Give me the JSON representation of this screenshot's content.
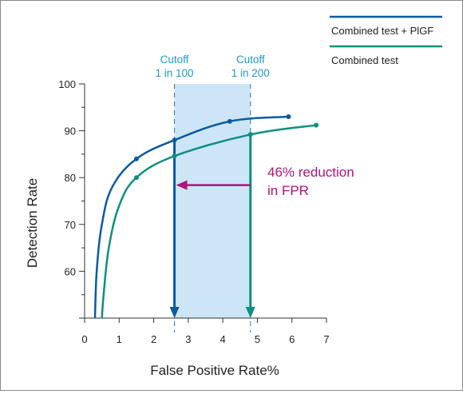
{
  "chart_data": {
    "type": "line",
    "xlabel": "False Positive Rate%",
    "ylabel": "Detection Rate",
    "xlim": [
      0,
      7
    ],
    "ylim": [
      50,
      100
    ],
    "x_ticks": [
      "0",
      "1",
      "2",
      "3",
      "4",
      "5",
      "6",
      "7"
    ],
    "y_ticks": [
      "60",
      "70",
      "80",
      "90",
      "100"
    ],
    "series": [
      {
        "name": "Combined test + PlGF",
        "color": "#0a5aa4",
        "points": [
          [
            0.3,
            50
          ],
          [
            0.35,
            60
          ],
          [
            0.5,
            70
          ],
          [
            0.8,
            78
          ],
          [
            1.5,
            84
          ],
          [
            2.6,
            88
          ],
          [
            4.2,
            92
          ],
          [
            5.9,
            93
          ]
        ],
        "markers": [
          [
            1.5,
            84
          ],
          [
            2.6,
            88
          ],
          [
            4.2,
            92
          ],
          [
            5.9,
            93
          ]
        ]
      },
      {
        "name": "Combined test",
        "color": "#0e8f7f",
        "points": [
          [
            0.5,
            50
          ],
          [
            0.55,
            55
          ],
          [
            0.7,
            65
          ],
          [
            1.0,
            74
          ],
          [
            1.5,
            80
          ],
          [
            2.6,
            84.6
          ],
          [
            4.8,
            89.2
          ],
          [
            6.7,
            91.2
          ]
        ],
        "markers": [
          [
            1.5,
            80
          ],
          [
            2.6,
            84.6
          ],
          [
            4.8,
            89.2
          ],
          [
            6.7,
            91.2
          ]
        ]
      }
    ],
    "cutoffs": [
      {
        "line1": "Cutoff",
        "line2": "1 in 100",
        "x": 2.6
      },
      {
        "line1": "Cutoff",
        "line2": "1 in 200",
        "x": 4.8
      }
    ],
    "shaded_band": {
      "x_from": 2.6,
      "x_to": 4.8,
      "color": "#cde6f7"
    },
    "annotation": {
      "line1": "46% reduction",
      "line2": "in FPR",
      "color": "#b0127a",
      "arrow_from_x": 4.8,
      "arrow_to_x": 2.6,
      "arrow_y": 78.4
    },
    "grid": false,
    "legend_position": "top-right"
  }
}
